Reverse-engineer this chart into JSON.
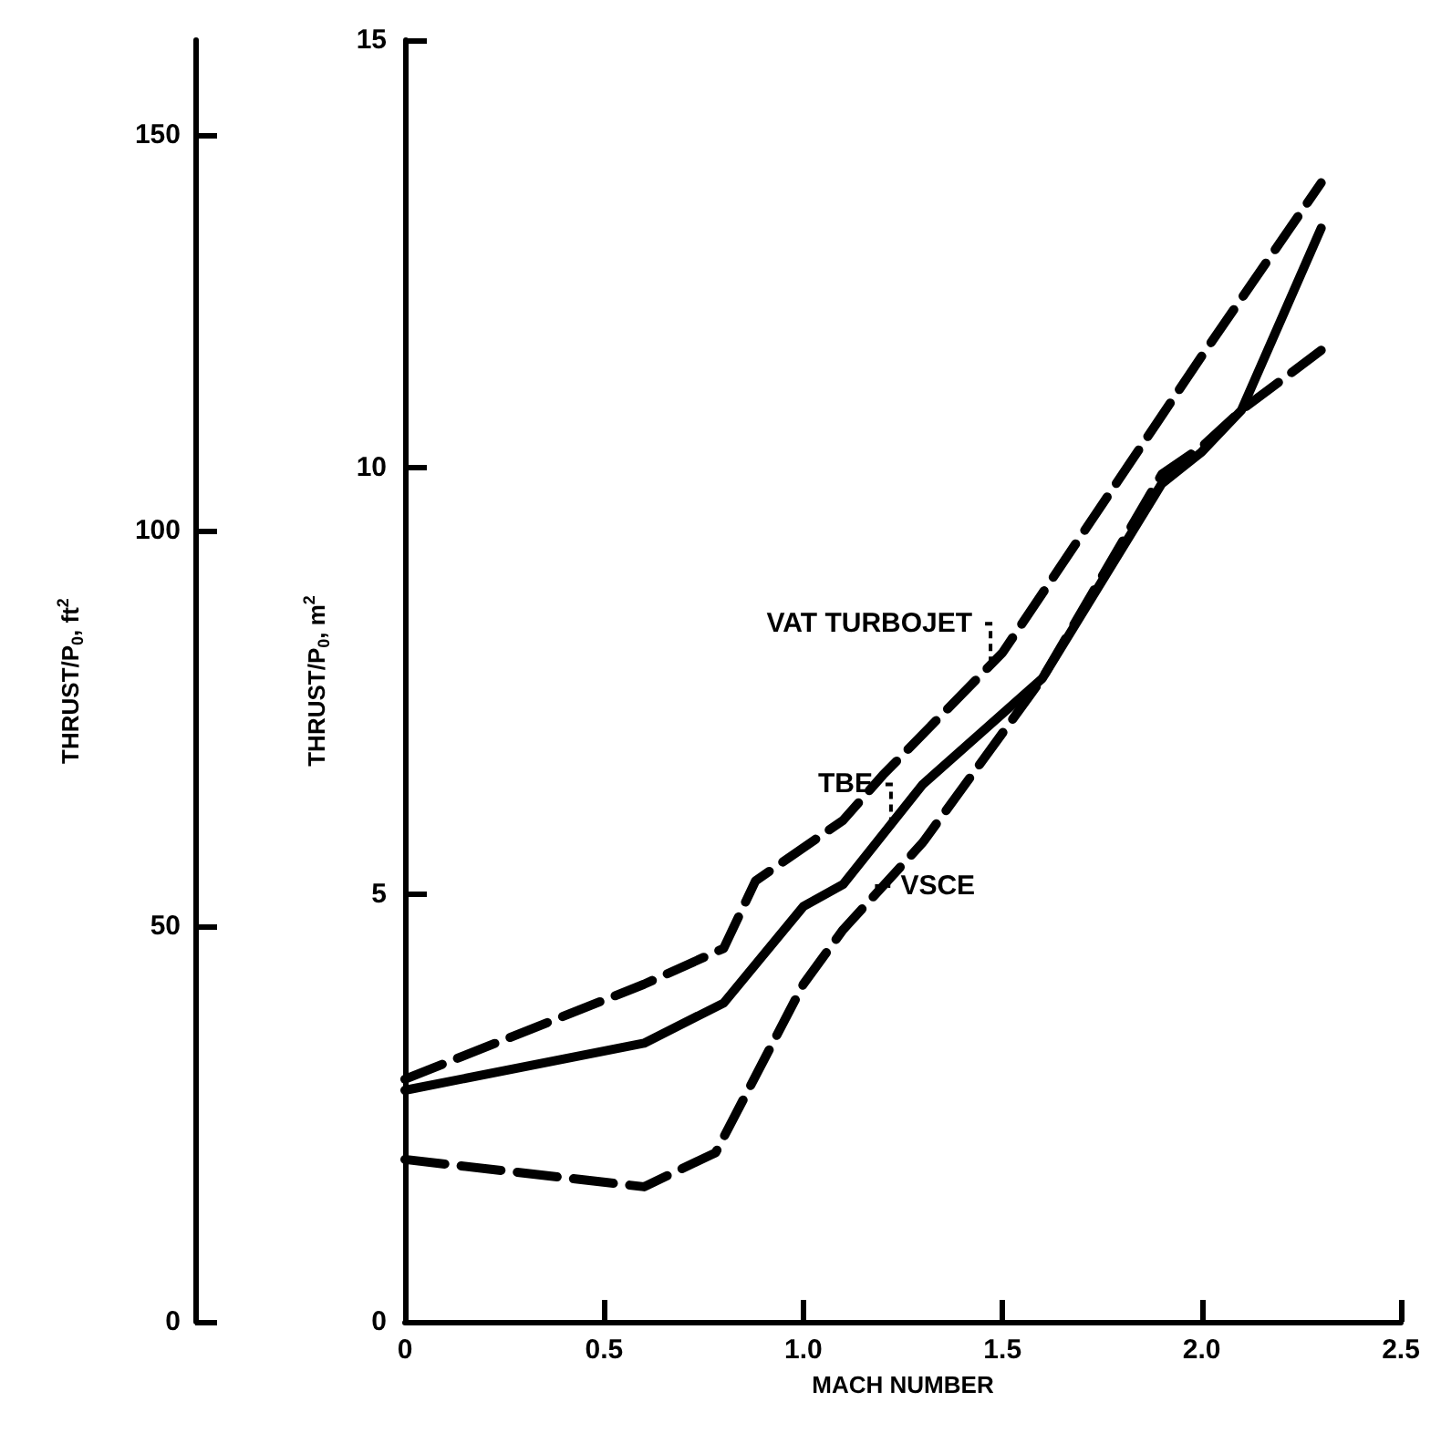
{
  "chart_data": {
    "type": "line",
    "xlabel": "MACH NUMBER",
    "ylabel": "THRUST/P$_{0}$, m$^{2}$",
    "y2label": "THRUST/P$_{0}$, ft$^{2}$",
    "xlim": [
      0,
      2.5
    ],
    "xticks": [
      0,
      0.5,
      {
        "value": 1,
        "label": "1.0"
      },
      1.5,
      {
        "value": 2,
        "label": "2.0"
      },
      2.5
    ],
    "ylim": [
      0,
      15
    ],
    "yticks": [
      0,
      5,
      10,
      15
    ],
    "y2lim": [
      0,
      162
    ],
    "y2ticks": [
      0,
      50,
      100,
      150
    ],
    "grid": false,
    "marker": "none",
    "series": [
      {
        "color": "#000000",
        "line_style": "dashed",
        "x": [
          0,
          0.6,
          0.8,
          0.88,
          1.1,
          1.2,
          1.5,
          2.0,
          2.3
        ],
        "values": [
          2.84,
          3.95,
          4.37,
          5.16,
          5.87,
          6.4,
          7.83,
          11.3,
          13.33
        ]
      },
      {
        "color": "#000000",
        "line_style": "solid",
        "x": [
          0,
          0.6,
          0.8,
          1.0,
          1.1,
          1.3,
          1.6,
          1.9,
          2.0,
          2.1,
          2.3
        ],
        "values": [
          2.71,
          3.26,
          3.73,
          4.86,
          5.12,
          6.29,
          7.53,
          9.81,
          10.18,
          10.67,
          12.8
        ]
      },
      {
        "color": "#000000",
        "line_style": "dashed",
        "x": [
          0,
          0.6,
          0.78,
          1.0,
          1.1,
          1.3,
          1.6,
          1.9,
          2.0,
          2.1,
          2.3
        ],
        "values": [
          1.9,
          1.58,
          1.98,
          3.95,
          4.59,
          5.61,
          7.53,
          9.92,
          10.24,
          10.67,
          11.37
        ]
      }
    ],
    "annotations": [
      {
        "text": "VAT TURBOJET",
        "x": 1.47,
        "y": 7.7
      },
      {
        "text": "TBE",
        "x": 1.22,
        "y": 5.82
      },
      {
        "text": "VSCE",
        "x": 1.18,
        "y": 5.1
      }
    ]
  }
}
